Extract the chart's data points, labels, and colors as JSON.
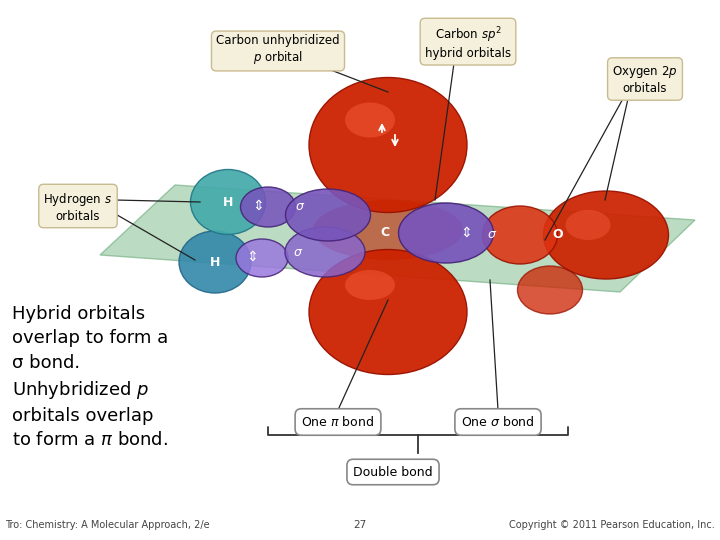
{
  "bg_color": "#ffffff",
  "footer_left": "Tro: Chemistry: A Molecular Approach, 2/e",
  "footer_center": "27",
  "footer_right": "Copyright © 2011 Pearson Education, Inc.",
  "label_carbon_unhybridized": "Carbon unhybridized\nρ orbital",
  "label_carbon_sp2": "Carbon ςρ²\nhybrid orbitals",
  "label_oxygen_2p": "Oxygen 2ρ\norbitals",
  "label_hydrogen_s": "Hydrogen ς\norbitals",
  "box_one_pi": "One π bond",
  "box_one_sigma": "One σ bond",
  "box_double": "Double bond",
  "plane_color": "#8ec49a",
  "plane_alpha": 0.6,
  "red_color": "#cc2200",
  "red_light": "#e05030",
  "purple_color": "#7755bb",
  "teal_color": "#44aaaa",
  "teal_dark": "#3388aa",
  "label_box_color": "#f5f0dc",
  "label_box_edge": "#c8bb90",
  "white_box_color": "#ffffff",
  "white_box_edge": "#888888"
}
